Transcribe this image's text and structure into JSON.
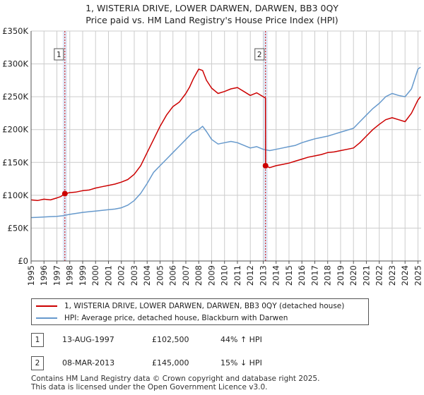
{
  "title_line1": "1, WISTERIA DRIVE, LOWER DARWEN, DARWEN, BB3 0QY",
  "title_line2": "Price paid vs. HM Land Registry's House Price Index (HPI)",
  "colors": {
    "property": "#cc0000",
    "hpi": "#6699cc",
    "sale_line": "#cc0000",
    "band": "#dde6f5"
  },
  "chart_data": {
    "type": "line",
    "title": "1, WISTERIA DRIVE, LOWER DARWEN, DARWEN, BB3 0QY",
    "subtitle": "Price paid vs. HM Land Registry's House Price Index (HPI)",
    "xlabel": "",
    "ylabel": "",
    "xlim": [
      1995,
      2025.25
    ],
    "ylim": [
      0,
      350000
    ],
    "y_ticks": [
      0,
      50000,
      100000,
      150000,
      200000,
      250000,
      300000,
      350000
    ],
    "y_tick_labels": [
      "£0",
      "£50K",
      "£100K",
      "£150K",
      "£200K",
      "£250K",
      "£300K",
      "£350K"
    ],
    "x_ticks": [
      1995,
      1996,
      1997,
      1998,
      1999,
      2000,
      2001,
      2002,
      2003,
      2004,
      2005,
      2006,
      2007,
      2008,
      2009,
      2010,
      2011,
      2012,
      2013,
      2014,
      2015,
      2016,
      2017,
      2018,
      2019,
      2020,
      2021,
      2022,
      2023,
      2024,
      2025
    ],
    "x_tick_labels": [
      "1995",
      "1996",
      "1997",
      "1998",
      "1999",
      "2000",
      "2001",
      "2002",
      "2003",
      "2004",
      "2005",
      "2006",
      "2007",
      "2008",
      "2009",
      "2010",
      "2011",
      "2012",
      "2013",
      "2014",
      "2015",
      "2016",
      "2017",
      "2018",
      "2019",
      "2020",
      "2021",
      "2022",
      "2023",
      "2024",
      "2025"
    ],
    "grid": true,
    "series": [
      {
        "name": "1, WISTERIA DRIVE, LOWER DARWEN, DARWEN, BB3 0QY (detached house)",
        "x": [
          1995,
          1995.5,
          1996,
          1996.5,
          1997,
          1997.3,
          1997.62,
          1998,
          1998.5,
          1999,
          1999.5,
          2000,
          2000.5,
          2001,
          2001.5,
          2002,
          2002.5,
          2003,
          2003.5,
          2004,
          2004.5,
          2005,
          2005.5,
          2006,
          2006.5,
          2007,
          2007.3,
          2007.6,
          2008,
          2008.3,
          2008.6,
          2009,
          2009.5,
          2010,
          2010.5,
          2011,
          2011.5,
          2012,
          2012.5,
          2013.0,
          2013.18,
          2013.19,
          2013.5,
          2014,
          2014.5,
          2015,
          2015.5,
          2016,
          2016.5,
          2017,
          2017.5,
          2018,
          2018.5,
          2019,
          2019.5,
          2020,
          2020.5,
          2021,
          2021.5,
          2022,
          2022.5,
          2023,
          2023.5,
          2024,
          2024.5,
          2025.0,
          2025.2
        ],
        "values": [
          93000,
          92000,
          94000,
          93000,
          96000,
          98000,
          102500,
          104000,
          105000,
          107000,
          108000,
          111000,
          113000,
          115000,
          117000,
          120000,
          124000,
          132000,
          145000,
          165000,
          185000,
          205000,
          222000,
          235000,
          242000,
          255000,
          265000,
          278000,
          292000,
          290000,
          275000,
          263000,
          255000,
          258000,
          262000,
          264000,
          258000,
          252000,
          256000,
          250000,
          248000,
          145000,
          142000,
          145000,
          147000,
          149000,
          152000,
          155000,
          158000,
          160000,
          162000,
          165000,
          166000,
          168000,
          170000,
          172000,
          180000,
          190000,
          200000,
          208000,
          215000,
          218000,
          215000,
          212000,
          225000,
          245000,
          250000
        ]
      },
      {
        "name": "HPI: Average price, detached house, Blackburn with Darwen",
        "x": [
          1995,
          1995.5,
          1996,
          1996.5,
          1997,
          1997.5,
          1998,
          1998.5,
          1999,
          1999.5,
          2000,
          2000.5,
          2001,
          2001.5,
          2002,
          2002.5,
          2003,
          2003.5,
          2004,
          2004.5,
          2005,
          2005.5,
          2006,
          2006.5,
          2007,
          2007.5,
          2008,
          2008.3,
          2008.6,
          2009,
          2009.5,
          2010,
          2010.5,
          2011,
          2011.5,
          2012,
          2012.5,
          2013,
          2013.5,
          2014,
          2014.5,
          2015,
          2015.5,
          2016,
          2016.5,
          2017,
          2017.5,
          2018,
          2018.5,
          2019,
          2019.5,
          2020,
          2020.5,
          2021,
          2021.5,
          2022,
          2022.5,
          2023,
          2023.5,
          2024,
          2024.5,
          2025.0,
          2025.2
        ],
        "values": [
          66000,
          66500,
          67000,
          67500,
          68000,
          69000,
          71000,
          72500,
          74000,
          75000,
          76000,
          77000,
          78000,
          79000,
          81000,
          85000,
          92000,
          103000,
          118000,
          135000,
          145000,
          155000,
          165000,
          175000,
          185000,
          195000,
          200000,
          205000,
          197000,
          185000,
          178000,
          180000,
          182000,
          180000,
          176000,
          172000,
          174000,
          170000,
          168000,
          170000,
          172000,
          174000,
          176000,
          180000,
          183000,
          186000,
          188000,
          190000,
          193000,
          196000,
          199000,
          202000,
          212000,
          222000,
          232000,
          240000,
          250000,
          255000,
          252000,
          250000,
          262000,
          292000,
          295000
        ]
      }
    ],
    "sales": [
      {
        "label": "1",
        "x": 1997.62,
        "value": 102500
      },
      {
        "label": "2",
        "x": 2013.18,
        "value": 145000
      }
    ]
  },
  "legend": {
    "property_label": "1, WISTERIA DRIVE, LOWER DARWEN, DARWEN, BB3 0QY (detached house)",
    "hpi_label": "HPI: Average price, detached house, Blackburn with Darwen"
  },
  "sales_table": [
    {
      "num": "1",
      "date": "13-AUG-1997",
      "price": "£102,500",
      "hpi": "44% ↑ HPI"
    },
    {
      "num": "2",
      "date": "08-MAR-2013",
      "price": "£145,000",
      "hpi": "15% ↓ HPI"
    }
  ],
  "footer": {
    "line1": "Contains HM Land Registry data © Crown copyright and database right 2025.",
    "line2": "This data is licensed under the Open Government Licence v3.0."
  }
}
